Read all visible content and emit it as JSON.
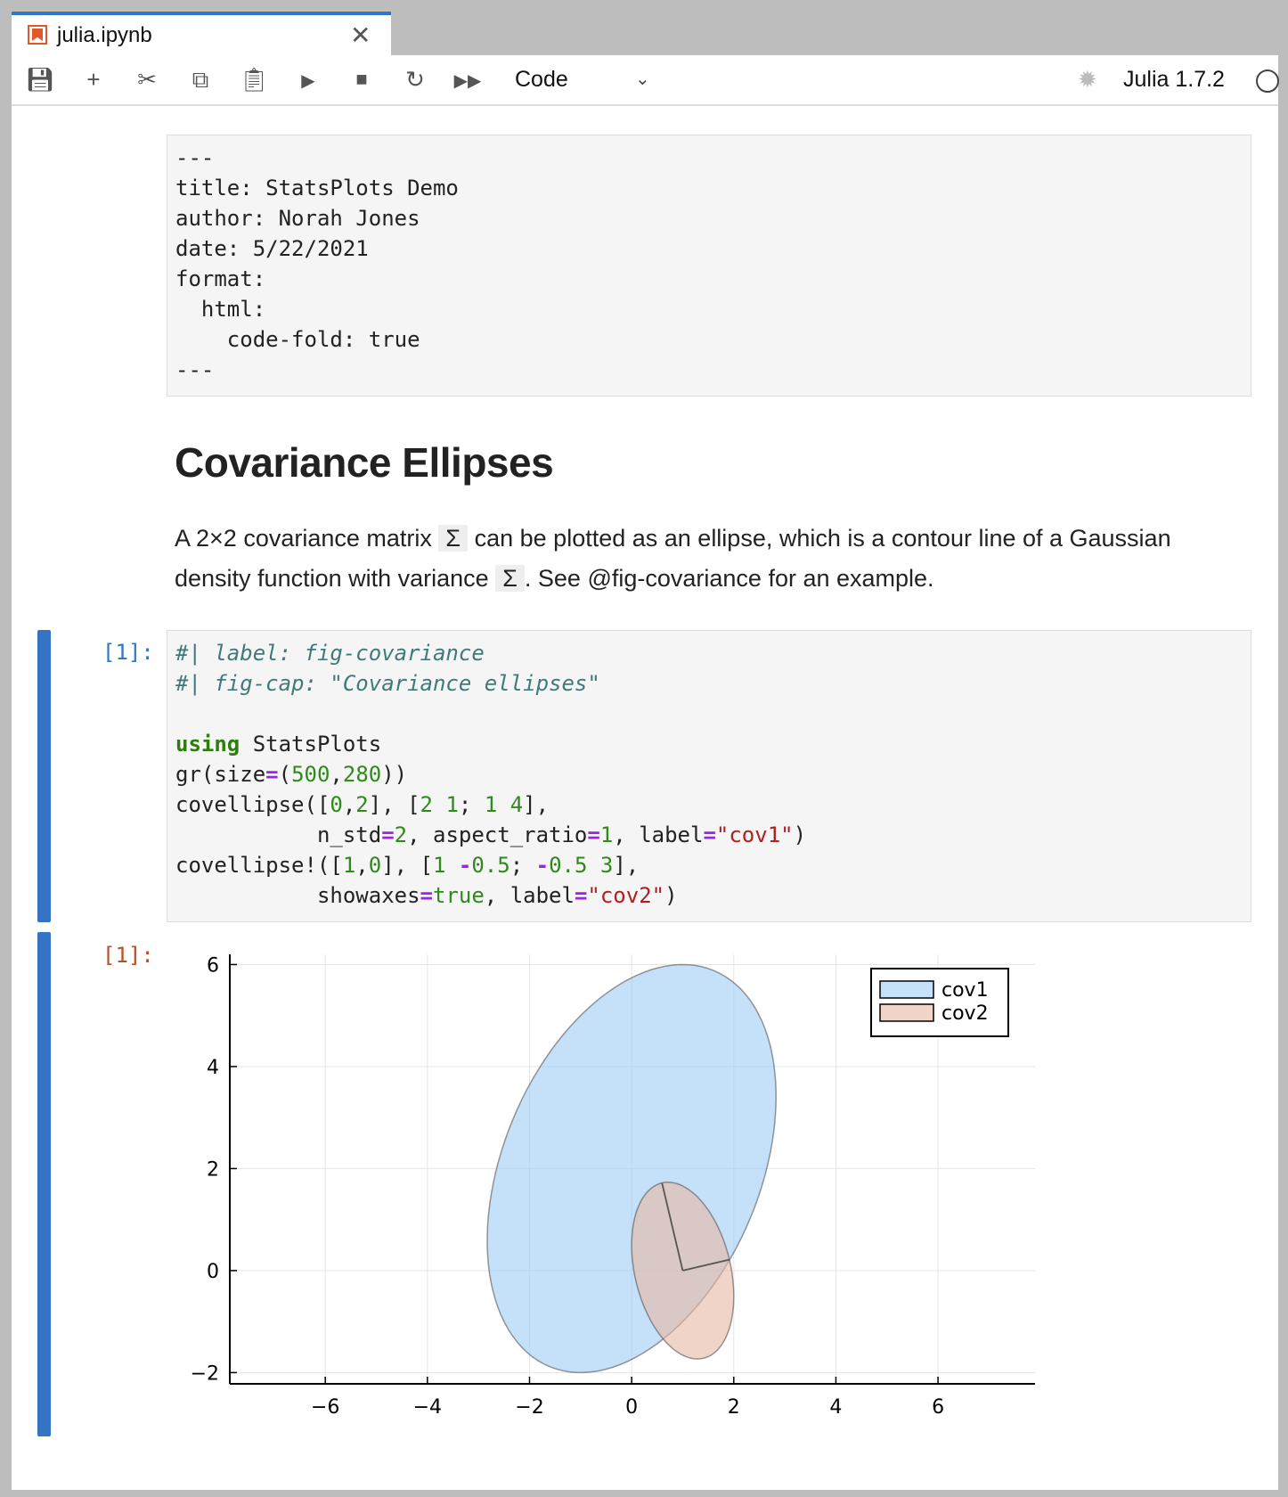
{
  "tab": {
    "title": "julia.ipynb",
    "icon": "notebook-icon"
  },
  "toolbar": {
    "icons": [
      "save-icon",
      "add-icon",
      "cut-icon",
      "copy-icon",
      "paste-icon",
      "run-icon",
      "stop-icon",
      "restart-icon",
      "fast-forward-icon"
    ],
    "cell_type": "Code",
    "kernel": "Julia 1.7.2"
  },
  "raw_cell": {
    "text": "---\ntitle: StatsPlots Demo\nauthor: Norah Jones\ndate: 5/22/2021\nformat:\n  html:\n    code-fold: true\n---"
  },
  "markdown": {
    "heading": "Covariance Ellipses",
    "p1": "A 2×2 covariance matrix ",
    "sigma": "Σ",
    "p2": " can be plotted as an ellipse, which is a contour line of a Gaussian density function with variance ",
    "p3": ". See @fig-covariance for an example."
  },
  "code_cell": {
    "prompt": "[1]:",
    "lines": [
      [
        [
          "cm",
          "#| label: fig-covariance"
        ]
      ],
      [
        [
          "cm",
          "#| fig-cap: \"Covariance ellipses\""
        ]
      ],
      [],
      [
        [
          "kw",
          "using"
        ],
        [
          "",
          ""
        ],
        [
          "",
          " StatsPlots"
        ]
      ],
      [
        [
          "",
          "gr(size"
        ],
        [
          "op",
          "="
        ],
        [
          "",
          "("
        ],
        [
          "nm",
          "500"
        ],
        [
          "",
          ","
        ],
        [
          "nm",
          "280"
        ],
        [
          "",
          "))"
        ]
      ],
      [
        [
          "",
          "covellipse(["
        ],
        [
          "nm",
          "0"
        ],
        [
          "",
          ","
        ],
        [
          "nm",
          "2"
        ],
        [
          "",
          "], ["
        ],
        [
          "nm",
          "2"
        ],
        [
          "nm",
          " 1"
        ],
        [
          "",
          "; "
        ],
        [
          "nm",
          "1"
        ],
        [
          "nm",
          " 4"
        ],
        [
          "",
          "],"
        ]
      ],
      [
        [
          "",
          "           n_std"
        ],
        [
          "op",
          "="
        ],
        [
          "nm",
          "2"
        ],
        [
          "",
          ", aspect_ratio"
        ],
        [
          "op",
          "="
        ],
        [
          "nm",
          "1"
        ],
        [
          "",
          ", label"
        ],
        [
          "op",
          "="
        ],
        [
          "st",
          "\"cov1\""
        ],
        [
          "",
          ")"
        ]
      ],
      [
        [
          "",
          "covellipse!(["
        ],
        [
          "nm",
          "1"
        ],
        [
          "",
          ","
        ],
        [
          "nm",
          "0"
        ],
        [
          "",
          "], ["
        ],
        [
          "nm",
          "1"
        ],
        [
          "",
          ""
        ],
        [
          "op",
          " -"
        ],
        [
          "nm",
          "0.5"
        ],
        [
          "",
          "; "
        ],
        [
          "op",
          "-"
        ],
        [
          "nm",
          "0.5"
        ],
        [
          "nm",
          " 3"
        ],
        [
          "",
          "],"
        ]
      ],
      [
        [
          "",
          "           showaxes"
        ],
        [
          "op",
          "="
        ],
        [
          "bl",
          "true"
        ],
        [
          "",
          ", label"
        ],
        [
          "op",
          "="
        ],
        [
          "st",
          "\"cov2\""
        ],
        [
          "",
          ")"
        ]
      ]
    ]
  },
  "output_cell": {
    "prompt": "[1]:"
  },
  "chart_data": {
    "type": "scatter",
    "title": "",
    "xlim": [
      -7.87,
      7.9
    ],
    "ylim": [
      -2.22,
      6.2
    ],
    "xticks": [
      -6,
      -4,
      -2,
      0,
      2,
      4,
      6
    ],
    "yticks": [
      -2,
      0,
      2,
      4,
      6
    ],
    "grid": true,
    "legend": "top-right",
    "series": [
      {
        "name": "cov1",
        "mean": [
          0,
          2
        ],
        "cov": [
          [
            2,
            1
          ],
          [
            1,
            4
          ]
        ],
        "n_std": 2,
        "color": "#9ecbf5",
        "showaxes": false
      },
      {
        "name": "cov2",
        "mean": [
          1,
          0
        ],
        "cov": [
          [
            1,
            -0.5
          ],
          [
            -0.5,
            3
          ]
        ],
        "n_std": 1,
        "color": "#e8b8a4",
        "showaxes": true
      }
    ]
  },
  "colors": {
    "accent": "#3574c4",
    "output_prompt": "#b5502b",
    "input_prompt": "#3574c4"
  }
}
